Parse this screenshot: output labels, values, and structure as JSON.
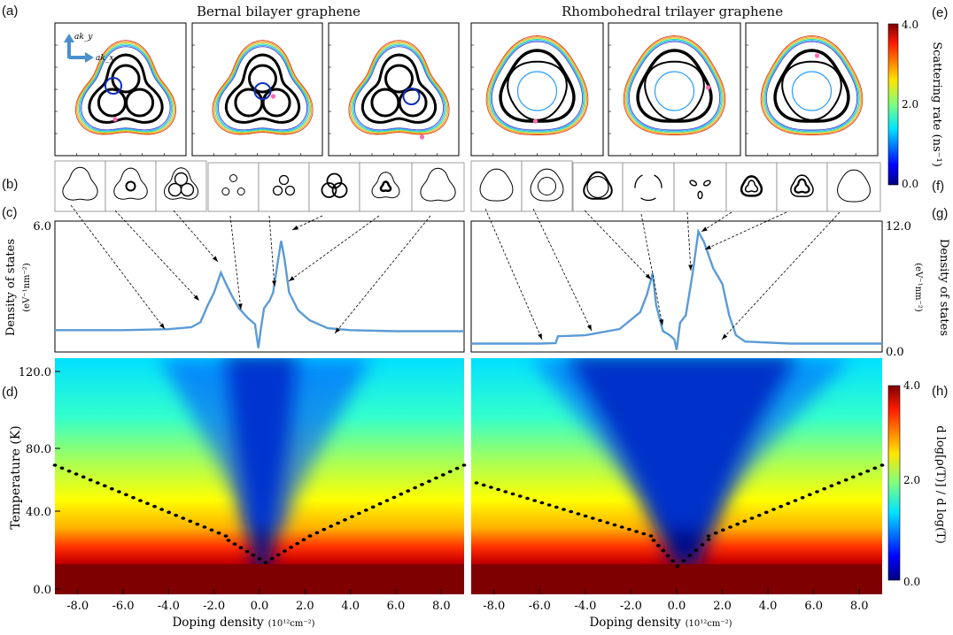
{
  "panel_labels": {
    "a": "(a)",
    "b": "(b)",
    "c": "(c)",
    "d": "(d)",
    "e": "(e)",
    "f": "(f)",
    "g": "(g)",
    "h": "(h)"
  },
  "titles": {
    "left": "Bernal bilayer graphene",
    "right": "Rhombohedral trilayer graphene"
  },
  "inset_axes": {
    "ky": "ak_y",
    "kx": "ak_x"
  },
  "scatter_colorbar": {
    "label": "Scattering rate (ns⁻¹)",
    "ticks": [
      "4.0",
      "2.0",
      "0.0"
    ],
    "range": [
      0,
      4
    ]
  },
  "exponent_colorbar": {
    "label": "d log[ρ(T)] / d log(T)",
    "ticks": [
      "4.0",
      "2.0",
      "0.0"
    ],
    "range": [
      0,
      4
    ]
  },
  "dos_left": {
    "ylabel": "Density of states",
    "yunit": "(eV⁻¹nm⁻²)",
    "yticks": [
      "6.0"
    ],
    "ylim": [
      0,
      6.6
    ],
    "x": [
      -9,
      -8,
      -6,
      -4,
      -3,
      -2.6,
      -2.3,
      -2.0,
      -1.7,
      -1.5,
      -1.2,
      -0.9,
      -0.5,
      -0.2,
      -0.05,
      0.05,
      0.2,
      0.45,
      0.6,
      0.8,
      0.95,
      1.1,
      1.3,
      1.7,
      2.2,
      3,
      4,
      6,
      8,
      9
    ],
    "y": [
      1.1,
      1.1,
      1.1,
      1.15,
      1.25,
      1.5,
      2.3,
      3.0,
      4.0,
      3.5,
      2.8,
      2.2,
      1.7,
      1.4,
      0.2,
      1.1,
      2.2,
      2.6,
      3.0,
      4.5,
      5.6,
      4.7,
      3.0,
      2.1,
      1.6,
      1.2,
      1.1,
      1.05,
      1.05,
      1.05
    ]
  },
  "dos_right": {
    "ylabel": "Density of states",
    "yunit": "(eV⁻¹nm⁻²)",
    "yticks": [
      "12.0",
      "0.0"
    ],
    "ylim": [
      0,
      12.5
    ],
    "x": [
      -9,
      -6,
      -5.3,
      -5.2,
      -4,
      -2.5,
      -1.6,
      -1.3,
      -1.05,
      -0.9,
      -0.6,
      -0.3,
      -0.1,
      0.0,
      0.15,
      0.4,
      0.7,
      0.95,
      1.2,
      1.6,
      2.0,
      2.3,
      2.6,
      3,
      5,
      9
    ],
    "y": [
      0.8,
      0.8,
      0.85,
      1.5,
      1.6,
      2.2,
      3.8,
      5.5,
      7.5,
      4.5,
      2.0,
      1.6,
      1.2,
      0.2,
      2.8,
      3.5,
      7.5,
      11.5,
      10.5,
      8.0,
      6.5,
      3.5,
      1.6,
      1.0,
      0.8,
      0.8
    ]
  },
  "heatmap": {
    "ylabel": "Temperature (K)",
    "yticks": [
      "120.0",
      "80.0",
      "40.0",
      "0.0"
    ],
    "ylim": [
      0,
      125
    ]
  },
  "xaxis": {
    "label": "Doping density",
    "unit": "(10¹²cm⁻²)",
    "ticks": [
      "-8.0",
      "-6.0",
      "-4.0",
      "-2.0",
      "0.0",
      "2.0",
      "4.0",
      "6.0",
      "8.0"
    ],
    "tick_values": [
      -8,
      -6,
      -4,
      -2,
      0,
      2,
      4,
      6,
      8
    ],
    "xlim": [
      -9,
      9
    ]
  },
  "chart_data": [
    {
      "type": "line",
      "name": "dos_left",
      "x": [
        -9,
        -8,
        -6,
        -4,
        -3,
        -2.6,
        -2.3,
        -2.0,
        -1.7,
        -1.5,
        -1.2,
        -0.9,
        -0.5,
        -0.2,
        -0.05,
        0.05,
        0.2,
        0.45,
        0.6,
        0.8,
        0.95,
        1.1,
        1.3,
        1.7,
        2.2,
        3,
        4,
        6,
        8,
        9
      ],
      "values": [
        1.1,
        1.1,
        1.1,
        1.15,
        1.25,
        1.5,
        2.3,
        3.0,
        4.0,
        3.5,
        2.8,
        2.2,
        1.7,
        1.4,
        0.2,
        1.1,
        2.2,
        2.6,
        3.0,
        4.5,
        5.6,
        4.7,
        3.0,
        2.1,
        1.6,
        1.2,
        1.1,
        1.05,
        1.05,
        1.05
      ]
    },
    {
      "type": "line",
      "name": "dos_right",
      "x": [
        -9,
        -6,
        -5.3,
        -5.2,
        -4,
        -2.5,
        -1.6,
        -1.3,
        -1.05,
        -0.9,
        -0.6,
        -0.3,
        -0.1,
        0.0,
        0.15,
        0.4,
        0.7,
        0.95,
        1.2,
        1.6,
        2.0,
        2.3,
        2.6,
        3,
        5,
        9
      ],
      "values": [
        0.8,
        0.8,
        0.85,
        1.5,
        1.6,
        2.2,
        3.8,
        5.5,
        7.5,
        4.5,
        2.0,
        1.6,
        1.2,
        0.2,
        2.8,
        3.5,
        7.5,
        11.5,
        10.5,
        8.0,
        6.5,
        3.5,
        1.6,
        1.0,
        0.8,
        0.8
      ]
    },
    {
      "type": "heatmap",
      "name": "exponent_map",
      "xlim": [
        -9,
        9
      ],
      "ylim": [
        0,
        125
      ]
    }
  ],
  "colors": {
    "dos_line": "#5b9bd5",
    "marker": "#ff69b4",
    "dots": "#000000"
  }
}
